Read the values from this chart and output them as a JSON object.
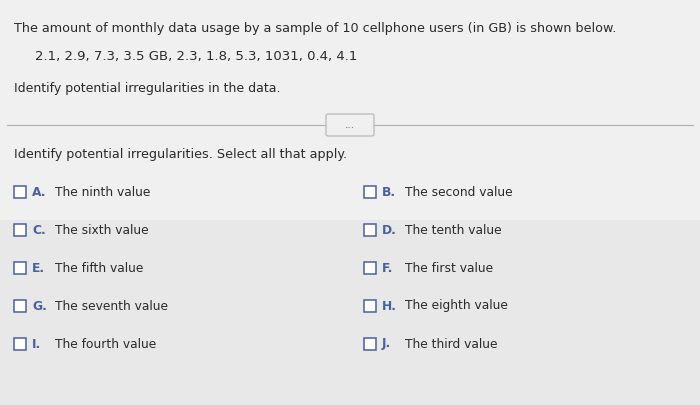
{
  "bg_color": "#e8e8e8",
  "top_bg": "#ffffff",
  "top_text": "The amount of monthly data usage by a sample of 10 cellphone users (in GB) is shown below.",
  "data_line": "2.1, 2.9, 7.3, 3.5 GB, 2.3, 1.8, 5.3, 1031, 0.4, 4.1",
  "identify_top": "Identify potential irregularities in the data.",
  "identify_bottom": "Identify potential irregularities. Select all that apply.",
  "left_options": [
    [
      "A.",
      "The ninth value"
    ],
    [
      "C.",
      "The sixth value"
    ],
    [
      "E.",
      "The fifth value"
    ],
    [
      "G.",
      "The seventh value"
    ],
    [
      "I.",
      "The fourth value"
    ]
  ],
  "right_options": [
    [
      "B.",
      "The second value"
    ],
    [
      "D.",
      "The tenth value"
    ],
    [
      "F.",
      "The first value"
    ],
    [
      "H.",
      "The eighth value"
    ],
    [
      "J.",
      "The third value"
    ]
  ],
  "dots_text": "...",
  "text_color": "#2a2a2a",
  "box_color": "#4a5fa0",
  "font_size_top": 9.2,
  "font_size_data": 9.5,
  "font_size_identify": 9.0,
  "font_size_options": 8.8,
  "font_size_bottom_label": 9.2
}
